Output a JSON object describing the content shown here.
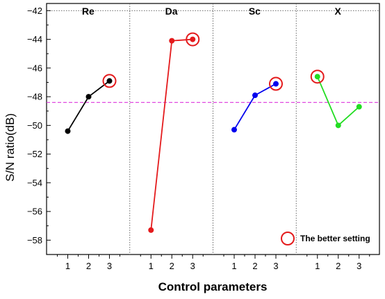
{
  "chart_data": {
    "type": "line",
    "xlabel": "Control parameters",
    "ylabel": "S/N ratio(dB)",
    "ylim": [
      -59,
      -41.5
    ],
    "yticks": [
      -42,
      -44,
      -46,
      -48,
      -50,
      -52,
      -54,
      -56,
      -58
    ],
    "reference_line": -48.4,
    "top_gridline": -42,
    "legend": {
      "label": "The better setting",
      "placement": "bottom-right"
    },
    "panels": [
      {
        "name": "Re",
        "color": "#000000",
        "x": [
          "1",
          "2",
          "3"
        ],
        "values": [
          -50.4,
          -48.0,
          -46.9
        ],
        "better": 3
      },
      {
        "name": "Da",
        "color": "#e41a1c",
        "x": [
          "1",
          "2",
          "3"
        ],
        "values": [
          -57.3,
          -44.1,
          -44.0
        ],
        "better": 3
      },
      {
        "name": "Sc",
        "color": "#0000ee",
        "x": [
          "1",
          "2",
          "3"
        ],
        "values": [
          -50.3,
          -47.9,
          -47.1
        ],
        "better": 3
      },
      {
        "name": "X",
        "color": "#22dd22",
        "x": [
          "1",
          "2",
          "3"
        ],
        "values": [
          -46.6,
          -50.0,
          -48.7
        ],
        "better": 1
      }
    ]
  }
}
